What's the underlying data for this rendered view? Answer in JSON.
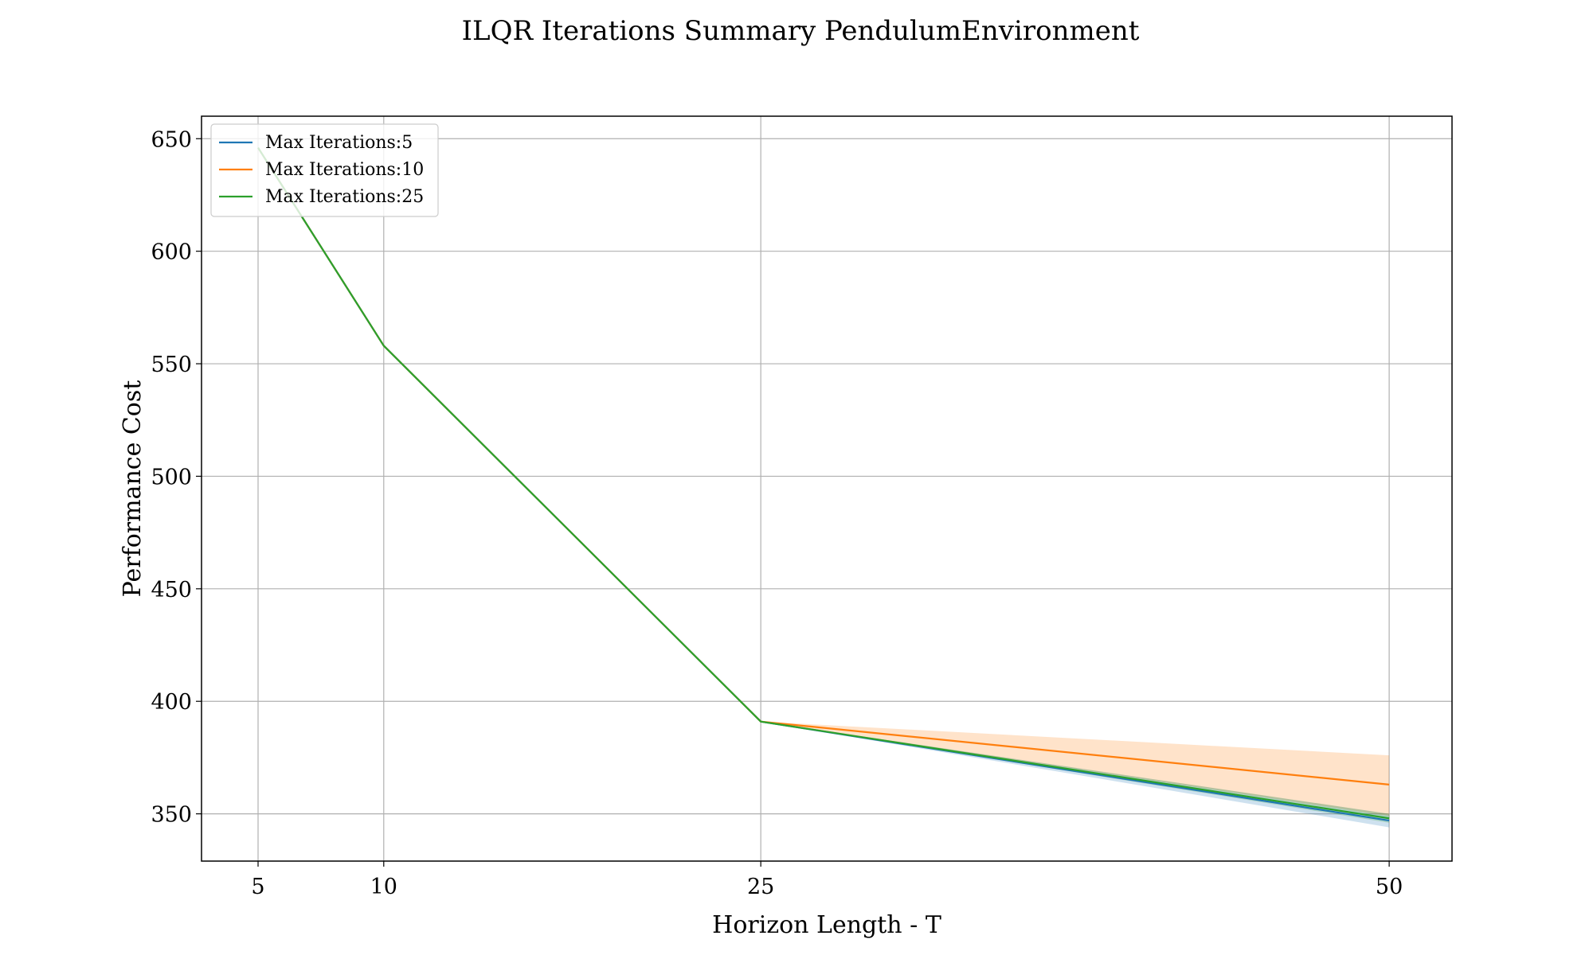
{
  "chart_data": {
    "type": "line",
    "title": "ILQR Iterations Summary PendulumEnvironment",
    "xlabel": "Horizon Length - T",
    "ylabel": "Performance Cost",
    "x": [
      5,
      10,
      25,
      50
    ],
    "xticks": [
      "5",
      "10",
      "25",
      "50"
    ],
    "yticks": [
      "350",
      "400",
      "450",
      "500",
      "550",
      "600",
      "650"
    ],
    "xlim": [
      2.75,
      52.5
    ],
    "ylim": [
      329,
      660
    ],
    "grid": true,
    "legend_position": "upper-left",
    "series": [
      {
        "name": "Max Iterations:5",
        "color": "#1f77b4",
        "values": [
          646,
          558,
          391,
          347
        ],
        "band_low": [
          646,
          558,
          391,
          344
        ],
        "band_high": [
          646,
          558,
          391,
          350
        ]
      },
      {
        "name": "Max Iterations:10",
        "color": "#ff7f0e",
        "values": [
          646,
          558,
          391,
          363
        ],
        "band_low": [
          646,
          558,
          391,
          349
        ],
        "band_high": [
          646,
          558,
          391,
          376
        ]
      },
      {
        "name": "Max Iterations:25",
        "color": "#2ca02c",
        "values": [
          646,
          558,
          391,
          348
        ],
        "band_low": [
          646,
          558,
          391,
          346
        ],
        "band_high": [
          646,
          558,
          391,
          350
        ]
      }
    ]
  }
}
